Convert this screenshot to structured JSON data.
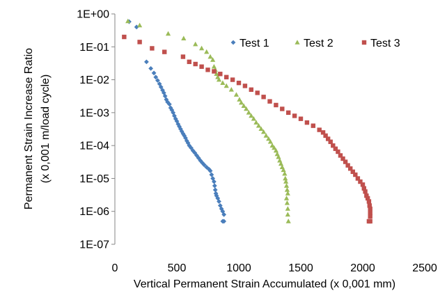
{
  "chart_data": {
    "type": "scatter",
    "title": "",
    "xlabel": "Vertical Permanent Strain Accumulated (x 0,001 mm)",
    "ylabel_line1": "Permanent Strain Increase Ratio",
    "ylabel_line2": "(x 0,001 m/load cycle)",
    "x_scale": "linear",
    "y_scale": "log",
    "xlim": [
      0,
      2500
    ],
    "ylim": [
      1e-07,
      1
    ],
    "x_ticks": [
      0,
      500,
      1000,
      1500,
      2000,
      2500
    ],
    "x_tick_labels": [
      "0",
      "500",
      "1000",
      "1500",
      "2000",
      "2500"
    ],
    "y_ticks": [
      1,
      0.1,
      0.01,
      0.001,
      0.0001,
      1e-05,
      1e-06,
      1e-07
    ],
    "y_tick_labels": [
      "1E+00",
      "1E-01",
      "1E-02",
      "1E-03",
      "1E-04",
      "1E-05",
      "1E-06",
      "1E-07"
    ],
    "grid": false,
    "legend_position": "top-right",
    "series": [
      {
        "name": "Test 1",
        "color": "#4a7ebb",
        "marker": "diamond",
        "points": [
          [
            115,
            0.58
          ],
          [
            175,
            0.4
          ],
          [
            255,
            0.035
          ],
          [
            290,
            0.022
          ],
          [
            315,
            0.016
          ],
          [
            330,
            0.012
          ],
          [
            345,
            0.0095
          ],
          [
            360,
            0.0075
          ],
          [
            372,
            0.006
          ],
          [
            385,
            0.0048
          ],
          [
            395,
            0.004
          ],
          [
            405,
            0.0032
          ],
          [
            415,
            0.0025
          ],
          [
            425,
            0.0021
          ],
          [
            440,
            0.0018
          ],
          [
            450,
            0.0014
          ],
          [
            460,
            0.0012
          ],
          [
            470,
            0.001
          ],
          [
            480,
            0.0008
          ],
          [
            490,
            0.00065
          ],
          [
            500,
            0.00055
          ],
          [
            510,
            0.00045
          ],
          [
            520,
            0.00038
          ],
          [
            530,
            0.00032
          ],
          [
            540,
            0.00027
          ],
          [
            550,
            0.00023
          ],
          [
            560,
            0.0002
          ],
          [
            570,
            0.00017
          ],
          [
            580,
            0.00014
          ],
          [
            590,
            0.00012
          ],
          [
            600,
            0.0001
          ],
          [
            615,
            8.5e-05
          ],
          [
            630,
            7e-05
          ],
          [
            645,
            6e-05
          ],
          [
            660,
            5e-05
          ],
          [
            675,
            4.2e-05
          ],
          [
            690,
            3.5e-05
          ],
          [
            705,
            3e-05
          ],
          [
            720,
            2.6e-05
          ],
          [
            740,
            2.2e-05
          ],
          [
            760,
            1.9e-05
          ],
          [
            770,
            1.7e-05
          ],
          [
            780,
            1.3e-05
          ],
          [
            790,
            1e-05
          ],
          [
            800,
            8e-06
          ],
          [
            805,
            6e-06
          ],
          [
            810,
            4.5e-06
          ],
          [
            815,
            3.5e-06
          ],
          [
            820,
            3e-06
          ],
          [
            830,
            2.5e-06
          ],
          [
            840,
            2e-06
          ],
          [
            850,
            1.5e-06
          ],
          [
            860,
            1.2e-06
          ],
          [
            870,
            1e-06
          ],
          [
            880,
            8e-07
          ],
          [
            880,
            5e-07
          ],
          [
            870,
            5e-07
          ]
        ]
      },
      {
        "name": "Test 2",
        "color": "#9bbb59",
        "marker": "triangle",
        "points": [
          [
            105,
            0.6
          ],
          [
            200,
            0.45
          ],
          [
            430,
            0.25
          ],
          [
            555,
            0.18
          ],
          [
            650,
            0.12
          ],
          [
            700,
            0.09
          ],
          [
            740,
            0.07
          ],
          [
            770,
            0.05
          ],
          [
            790,
            0.04
          ],
          [
            800,
            0.025
          ],
          [
            810,
            0.02
          ],
          [
            820,
            0.015
          ],
          [
            830,
            0.012
          ],
          [
            840,
            0.01
          ],
          [
            870,
            0.008
          ],
          [
            900,
            0.0065
          ],
          [
            940,
            0.005
          ],
          [
            980,
            0.0035
          ],
          [
            1005,
            0.0025
          ],
          [
            1020,
            0.002
          ],
          [
            1040,
            0.0016
          ],
          [
            1060,
            0.0013
          ],
          [
            1080,
            0.001
          ],
          [
            1100,
            0.0008
          ],
          [
            1120,
            0.00065
          ],
          [
            1140,
            0.0005
          ],
          [
            1160,
            0.0004
          ],
          [
            1180,
            0.00032
          ],
          [
            1200,
            0.00026
          ],
          [
            1220,
            0.0002
          ],
          [
            1240,
            0.00016
          ],
          [
            1255,
            0.00013
          ],
          [
            1270,
            0.0001
          ],
          [
            1285,
            8.5e-05
          ],
          [
            1300,
            7e-05
          ],
          [
            1310,
            5.5e-05
          ],
          [
            1320,
            4.5e-05
          ],
          [
            1330,
            3.5e-05
          ],
          [
            1340,
            2.8e-05
          ],
          [
            1350,
            2.2e-05
          ],
          [
            1360,
            1.8e-05
          ],
          [
            1370,
            1.4e-05
          ],
          [
            1375,
            1e-05
          ],
          [
            1380,
            8e-06
          ],
          [
            1385,
            6e-06
          ],
          [
            1390,
            4.5e-06
          ],
          [
            1395,
            3.5e-06
          ],
          [
            1385,
            2.5e-06
          ],
          [
            1390,
            1.8e-06
          ],
          [
            1395,
            1.2e-06
          ],
          [
            1395,
            8e-07
          ],
          [
            1400,
            5e-07
          ]
        ]
      },
      {
        "name": "Test 3",
        "color": "#c0504d",
        "marker": "square",
        "points": [
          [
            75,
            0.2
          ],
          [
            200,
            0.14
          ],
          [
            300,
            0.09
          ],
          [
            400,
            0.07
          ],
          [
            550,
            0.05
          ],
          [
            600,
            0.035
          ],
          [
            650,
            0.03
          ],
          [
            700,
            0.025
          ],
          [
            750,
            0.02
          ],
          [
            800,
            0.018
          ],
          [
            850,
            0.015
          ],
          [
            900,
            0.012
          ],
          [
            950,
            0.01
          ],
          [
            1000,
            0.008
          ],
          [
            1050,
            0.0065
          ],
          [
            1100,
            0.005
          ],
          [
            1150,
            0.004
          ],
          [
            1200,
            0.003
          ],
          [
            1250,
            0.0022
          ],
          [
            1300,
            0.0017
          ],
          [
            1350,
            0.0013
          ],
          [
            1400,
            0.001
          ],
          [
            1450,
            0.0008
          ],
          [
            1500,
            0.00065
          ],
          [
            1550,
            0.0005
          ],
          [
            1600,
            0.0004
          ],
          [
            1650,
            0.0003
          ],
          [
            1680,
            0.00025
          ],
          [
            1700,
            0.0002
          ],
          [
            1720,
            0.00016
          ],
          [
            1740,
            0.00013
          ],
          [
            1760,
            0.0001
          ],
          [
            1780,
            8e-05
          ],
          [
            1800,
            6.5e-05
          ],
          [
            1820,
            5e-05
          ],
          [
            1840,
            4e-05
          ],
          [
            1860,
            3.2e-05
          ],
          [
            1880,
            2.5e-05
          ],
          [
            1900,
            2e-05
          ],
          [
            1920,
            1.6e-05
          ],
          [
            1940,
            1.3e-05
          ],
          [
            1960,
            1e-05
          ],
          [
            1980,
            8e-06
          ],
          [
            2000,
            6.5e-06
          ],
          [
            2010,
            5e-06
          ],
          [
            2020,
            4e-06
          ],
          [
            2030,
            3e-06
          ],
          [
            2040,
            2.5e-06
          ],
          [
            2050,
            2e-06
          ],
          [
            2055,
            1.5e-06
          ],
          [
            2060,
            1.2e-06
          ],
          [
            2060,
            9e-07
          ],
          [
            2060,
            7e-07
          ],
          [
            2060,
            5e-07
          ],
          [
            2050,
            5e-07
          ]
        ]
      }
    ]
  }
}
